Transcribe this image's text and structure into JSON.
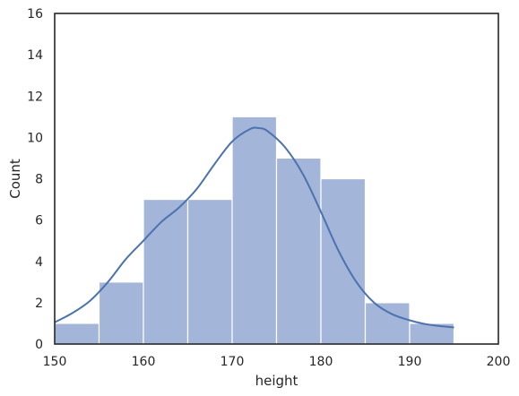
{
  "chart_data": {
    "type": "bar",
    "subtype": "histogram with kde",
    "xlabel": "height",
    "ylabel": "Count",
    "xlim": [
      150,
      200
    ],
    "ylim": [
      0,
      16
    ],
    "grid": false,
    "legend": "none",
    "x_ticks": [
      150,
      160,
      170,
      180,
      190,
      200
    ],
    "y_ticks": [
      0,
      2,
      4,
      6,
      8,
      10,
      12,
      14,
      16
    ],
    "bin_edges": [
      150,
      155,
      160,
      165,
      170,
      175,
      180,
      185,
      190,
      195
    ],
    "counts": [
      1,
      3,
      7,
      7,
      11,
      9,
      8,
      2,
      1
    ],
    "kde": {
      "x": [
        150,
        152,
        154,
        156,
        158,
        160,
        162,
        164,
        166,
        168,
        170,
        172,
        173,
        174,
        176,
        178,
        180,
        182,
        184,
        186,
        188,
        190,
        192,
        195
      ],
      "y": [
        1.05,
        1.5,
        2.1,
        3.0,
        4.1,
        5.0,
        5.9,
        6.6,
        7.5,
        8.7,
        9.8,
        10.4,
        10.45,
        10.3,
        9.5,
        8.2,
        6.4,
        4.5,
        3.0,
        2.0,
        1.45,
        1.15,
        0.95,
        0.8
      ]
    },
    "colors": {
      "bar_fill": "#a3b5d8",
      "bar_edge": "#ffffff",
      "line": "#4c72b0",
      "axis": "#262626"
    }
  }
}
